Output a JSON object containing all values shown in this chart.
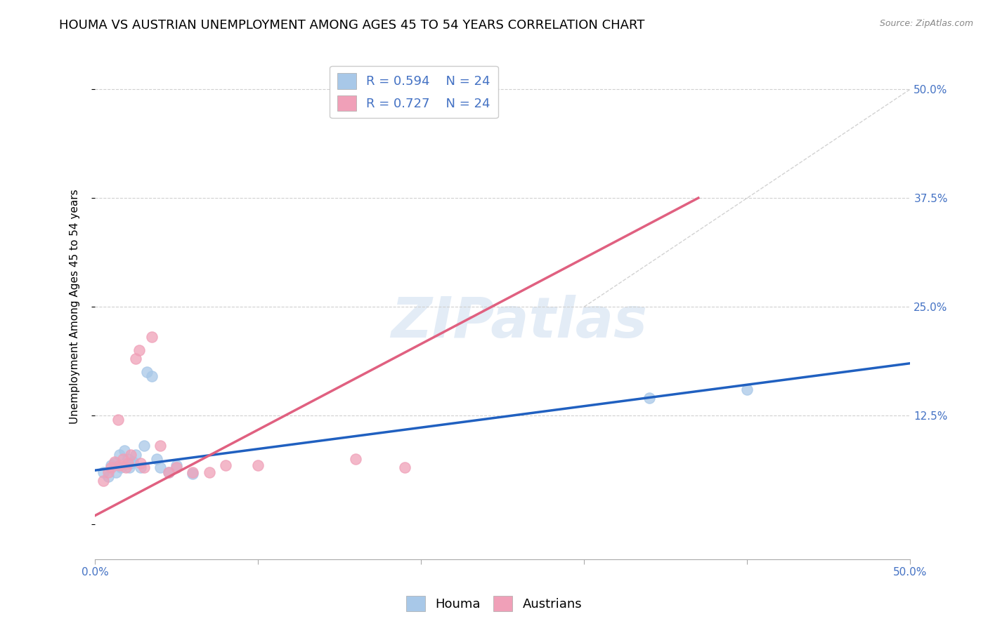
{
  "title": "HOUMA VS AUSTRIAN UNEMPLOYMENT AMONG AGES 45 TO 54 YEARS CORRELATION CHART",
  "source_text": "Source: ZipAtlas.com",
  "ylabel": "Unemployment Among Ages 45 to 54 years",
  "xlim": [
    0.0,
    0.5
  ],
  "ylim": [
    -0.04,
    0.54
  ],
  "xtick_positions": [
    0.0,
    0.1,
    0.2,
    0.3,
    0.4,
    0.5
  ],
  "xtick_labels_shown": {
    "0.0": "0.0%",
    "0.5": "50.0%"
  },
  "ytick_positions": [
    0.0,
    0.125,
    0.25,
    0.375,
    0.5
  ],
  "ytick_labels": [
    "",
    "12.5%",
    "25.0%",
    "37.5%",
    "50.0%"
  ],
  "houma_color": "#a8c8e8",
  "austrians_color": "#f0a0b8",
  "houma_line_color": "#2060c0",
  "austrians_line_color": "#e06080",
  "ref_line_color": "#c0c0c0",
  "R_houma": 0.594,
  "N_houma": 24,
  "R_austrians": 0.727,
  "N_austrians": 24,
  "houma_x": [
    0.005,
    0.008,
    0.01,
    0.012,
    0.013,
    0.015,
    0.016,
    0.018,
    0.02,
    0.021,
    0.022,
    0.023,
    0.025,
    0.028,
    0.03,
    0.032,
    0.035,
    0.038,
    0.04,
    0.045,
    0.05,
    0.06,
    0.34,
    0.4
  ],
  "houma_y": [
    0.06,
    0.055,
    0.068,
    0.07,
    0.06,
    0.08,
    0.065,
    0.085,
    0.075,
    0.065,
    0.07,
    0.072,
    0.08,
    0.065,
    0.09,
    0.175,
    0.17,
    0.075,
    0.065,
    0.06,
    0.068,
    0.058,
    0.145,
    0.155
  ],
  "austrians_x": [
    0.005,
    0.008,
    0.01,
    0.012,
    0.014,
    0.015,
    0.017,
    0.019,
    0.02,
    0.022,
    0.025,
    0.027,
    0.028,
    0.03,
    0.035,
    0.04,
    0.045,
    0.05,
    0.06,
    0.07,
    0.08,
    0.1,
    0.16,
    0.19
  ],
  "austrians_y": [
    0.05,
    0.06,
    0.065,
    0.072,
    0.12,
    0.068,
    0.075,
    0.065,
    0.07,
    0.08,
    0.19,
    0.2,
    0.07,
    0.065,
    0.215,
    0.09,
    0.06,
    0.065,
    0.06,
    0.06,
    0.068,
    0.068,
    0.075,
    0.065
  ],
  "houma_trend_x": [
    0.0,
    0.5
  ],
  "houma_trend_y": [
    0.062,
    0.185
  ],
  "austrians_trend_x": [
    0.0,
    0.37
  ],
  "austrians_trend_y": [
    0.01,
    0.375
  ],
  "ref_line_x": [
    0.3,
    0.5
  ],
  "ref_line_y": [
    0.25,
    0.5
  ],
  "background_color": "#ffffff",
  "grid_color": "#d0d0d0",
  "tick_color": "#4472c4",
  "title_fontsize": 13,
  "label_fontsize": 11,
  "tick_fontsize": 11,
  "legend_fontsize": 13,
  "marker_size": 120
}
